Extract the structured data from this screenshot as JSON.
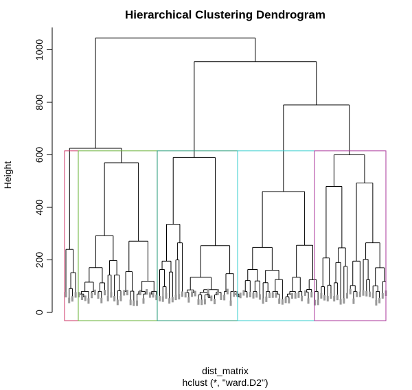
{
  "chart_data": {
    "type": "dendrogram",
    "title": "Hierarchical Clustering Dendrogram",
    "ylabel": "Height",
    "xlabel": "dist_matrix",
    "sub": "hclust (*, \"ward.D2\")",
    "ylim": [
      0,
      1100
    ],
    "yticks": [
      0,
      200,
      400,
      600,
      800,
      1000
    ],
    "ytick_labels": [
      "0",
      "200",
      "400",
      "600",
      "800",
      "1000"
    ],
    "leaf_count": 100,
    "merges_top": [
      {
        "name": "root",
        "height": 1045
      },
      {
        "name": "right-group",
        "height": 955
      },
      {
        "name": "rightmost-group",
        "height": 790
      },
      {
        "name": "left-group",
        "height": 625
      },
      {
        "name": "cluster-2",
        "height": 570
      },
      {
        "name": "cluster-3",
        "height": 590
      },
      {
        "name": "cluster-4",
        "height": 460
      },
      {
        "name": "cluster-5",
        "height": 600
      }
    ],
    "cluster_cut_height": 615,
    "clusters": [
      {
        "name": "cluster-1",
        "color": "#cc3366"
      },
      {
        "name": "cluster-2",
        "color": "#66b033"
      },
      {
        "name": "cluster-3",
        "color": "#229977"
      },
      {
        "name": "cluster-4",
        "color": "#33cccc"
      },
      {
        "name": "cluster-5",
        "color": "#aa3399"
      }
    ],
    "grid": false,
    "legend": "none"
  }
}
